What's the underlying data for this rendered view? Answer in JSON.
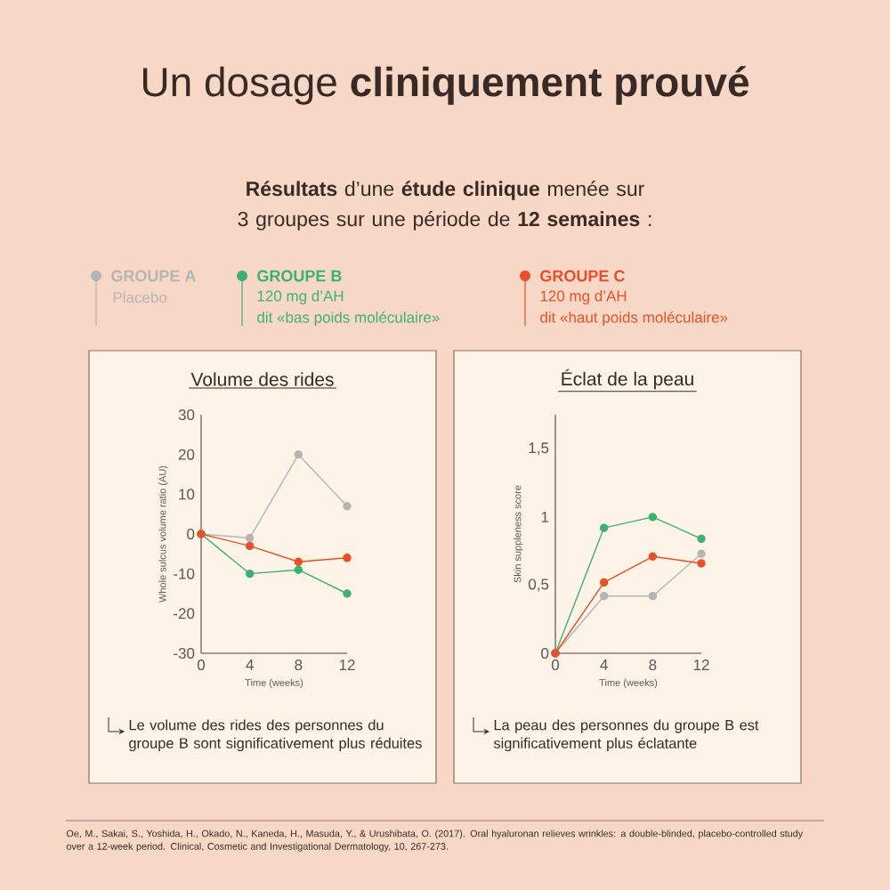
{
  "chart_data": [
    {
      "type": "other",
      "title": "Un dosage **cliniquement prouvé**",
      "subtitle": "**Résultats** d’une **étude clinique** menée sur 3 groupes sur une période de **12 semaines** :",
      "annotations": [
        "Placebo",
        "120 mg d’AH",
        "dit «bas poids moléculaire»",
        "120 mg d’AH",
        "dit «haut poids moléculaire»",
        "Oe, M., Sakai, S., Yoshida, H., Okado, N., Kaneda, H., Masuda, Y., & Urushibata, O. (2017). Oral hyaluronan relieves wrinkles: a double-blinded, placebo-controlled study over a 12-week period. Clinical, Cosmetic and Investigational Dermatology, 10, 267-273."
      ]
    },
    {
      "type": "line",
      "title": "Volume des rides",
      "xlabel": "Time (weeks)",
      "ylabel": "Whole sulcus volume ratio (AU)",
      "x": [
        0,
        4,
        8,
        12
      ],
      "xlim": [
        0,
        12
      ],
      "xticks": [
        0,
        4,
        8,
        12
      ],
      "ylim": [
        -30,
        30
      ],
      "yticks": [
        -30,
        -20,
        -10,
        0,
        10,
        20,
        30
      ],
      "series": [
        {
          "name": "GROUPE A",
          "color": "#b5b5b5",
          "values": [
            0,
            -1,
            20,
            7
          ]
        },
        {
          "name": "GROUPE B",
          "color": "#3bb273",
          "values": [
            0,
            -10,
            -9,
            -15
          ]
        },
        {
          "name": "GROUPE C",
          "color": "#e8502a",
          "values": [
            0,
            -3,
            -7,
            -6
          ]
        }
      ],
      "legend": "top",
      "marker": "circle",
      "line_style": "solid",
      "annotations": [
        "Le volume des rides des personnes du groupe B sont significativement plus réduites"
      ]
    },
    {
      "type": "line",
      "title": "Éclat de la peau",
      "xlabel": "Time (weeks)",
      "ylabel": "Skin suppleness score",
      "x": [
        0,
        4,
        8,
        12
      ],
      "xlim": [
        0,
        12
      ],
      "xticks": [
        0,
        4,
        8,
        12
      ],
      "ylim": [
        0,
        1.75
      ],
      "yticks": [
        0,
        {
          "value": 0.5,
          "label": "0,5"
        },
        1,
        {
          "value": 1.5,
          "label": "1,5"
        }
      ],
      "series": [
        {
          "color": "#b5b5b5",
          "values": [
            0,
            0.42,
            0.42,
            0.73
          ]
        },
        {
          "color": "#3bb273",
          "values": [
            0,
            0.92,
            1.0,
            0.84
          ]
        },
        {
          "color": "#e8502a",
          "values": [
            0,
            0.52,
            0.71,
            0.66
          ]
        }
      ],
      "marker": "circle",
      "line_style": "solid",
      "annotations": [
        "La peau des personnes du groupe B est significativement plus éclatante"
      ]
    }
  ]
}
